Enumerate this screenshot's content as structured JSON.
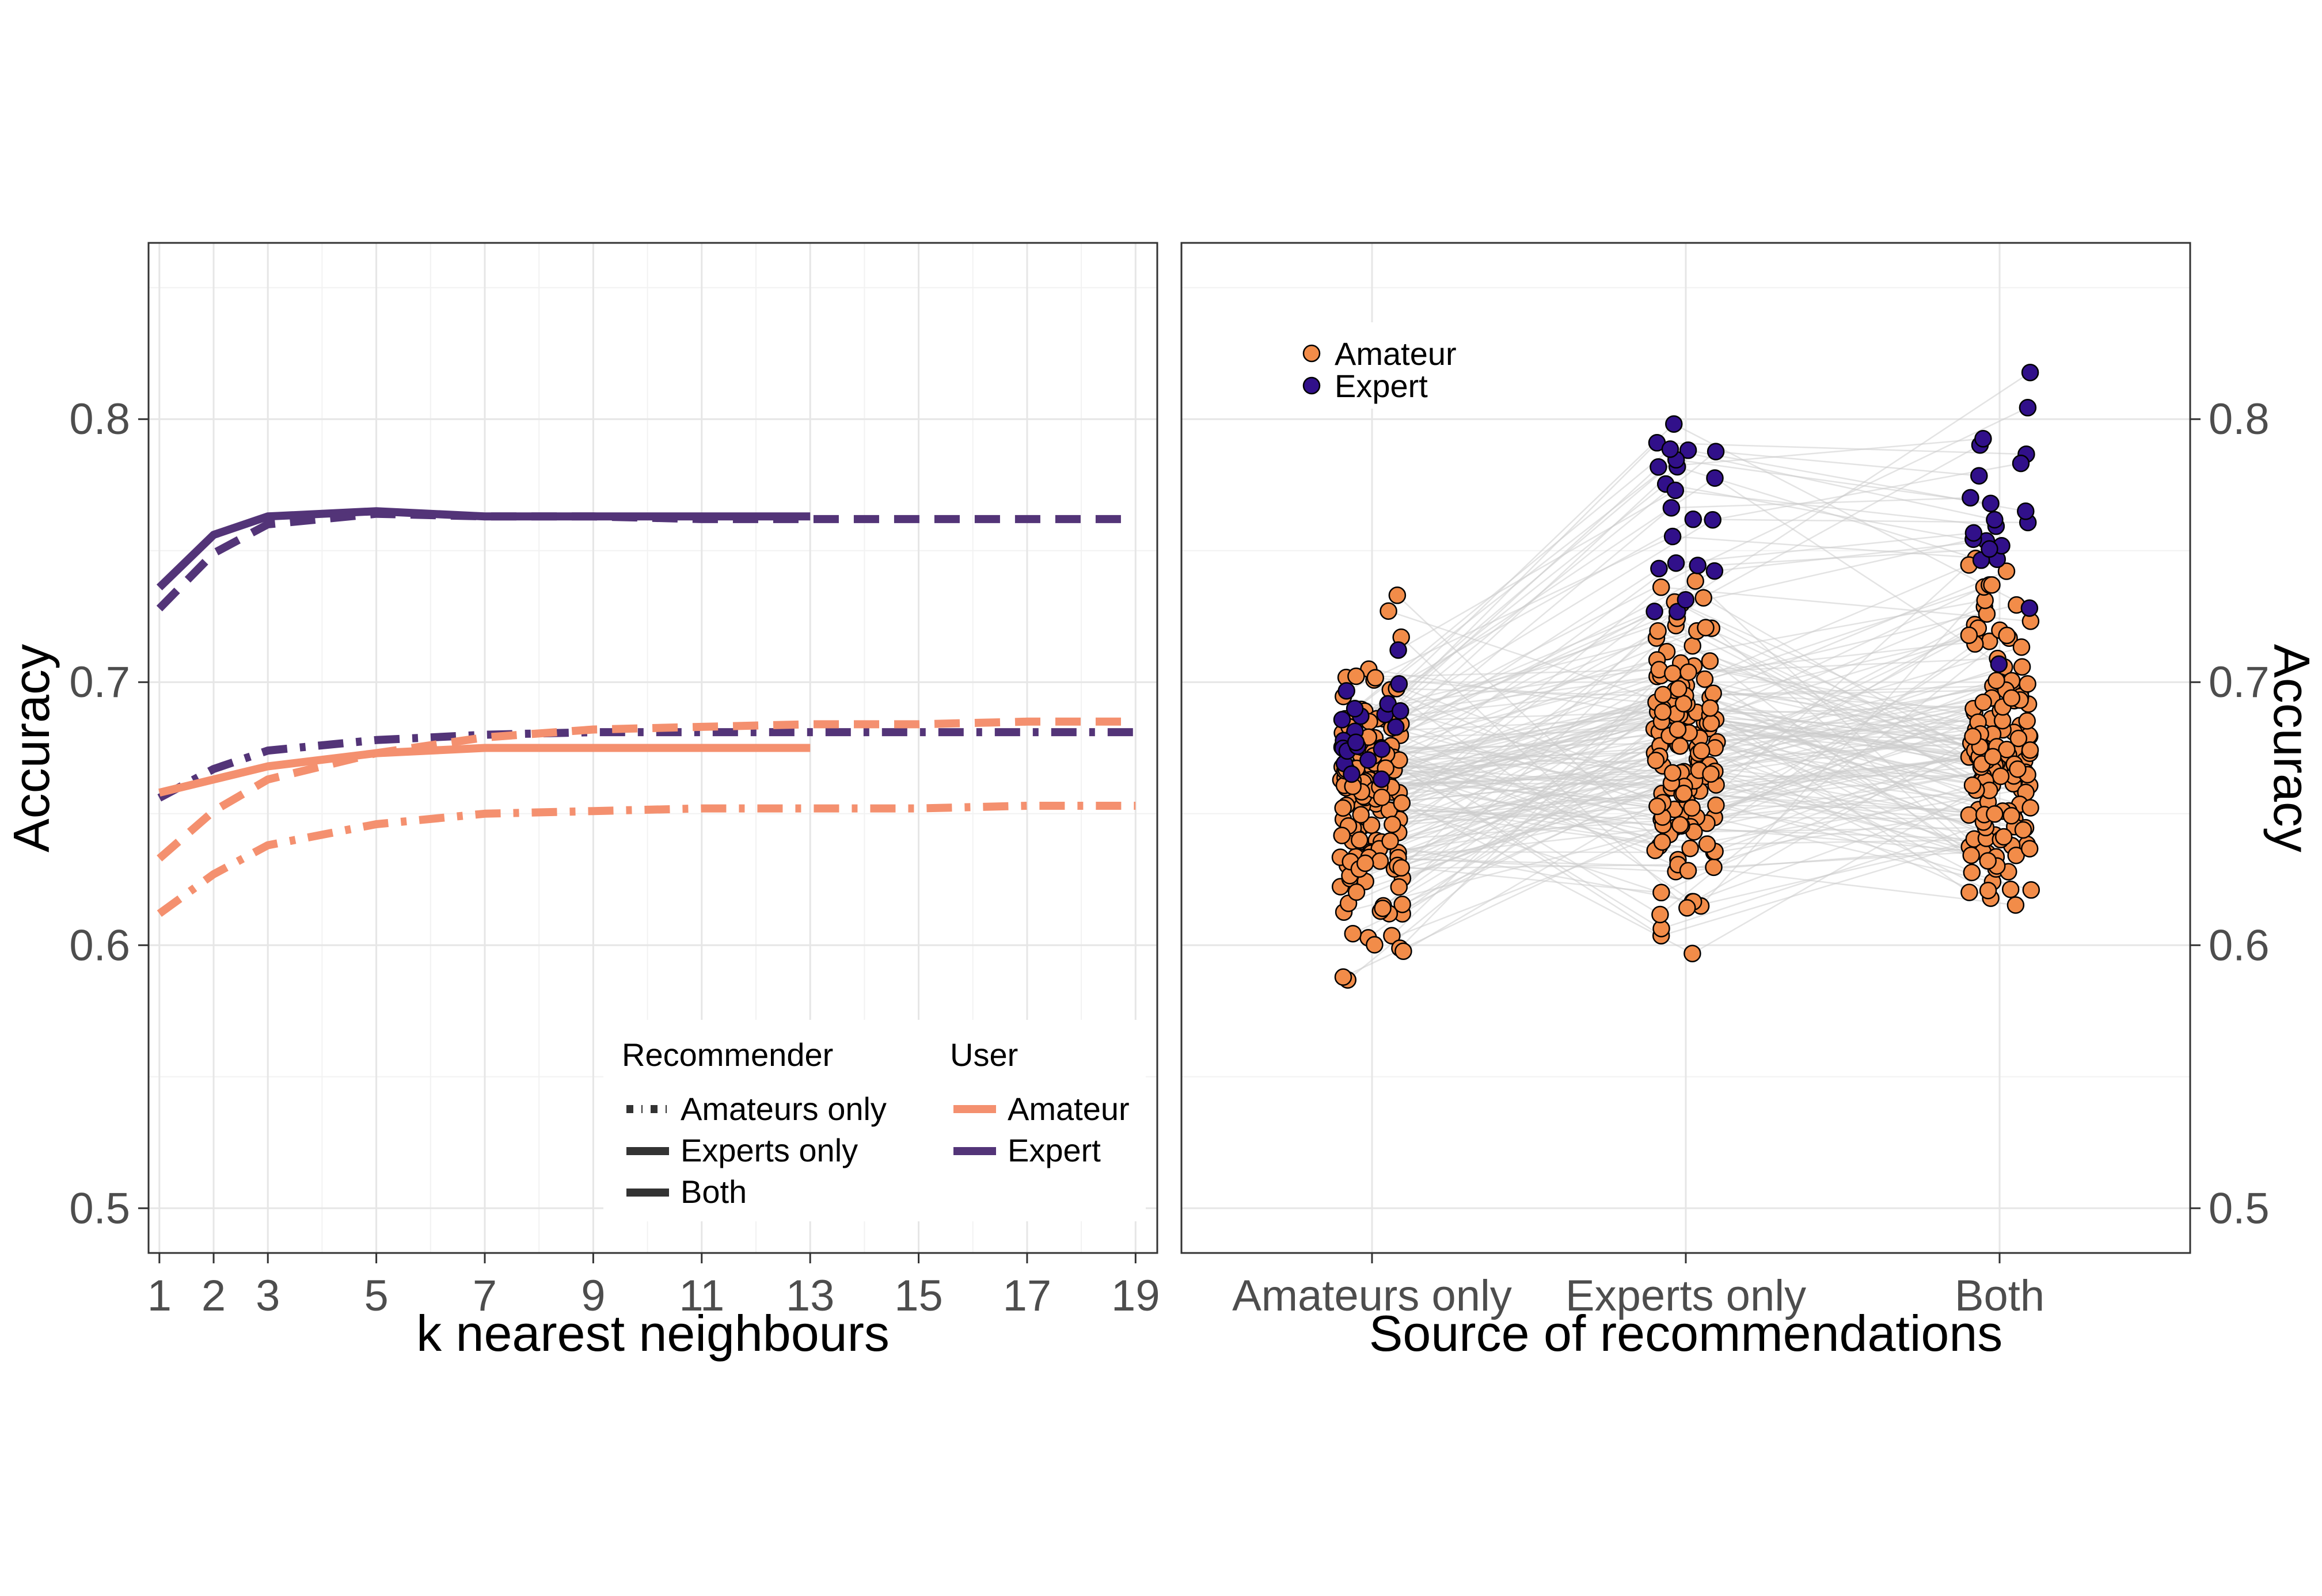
{
  "chart_data": [
    {
      "type": "line",
      "xlabel": "k nearest neighbours",
      "ylabel": "Accuracy",
      "xticks": [
        1,
        2,
        3,
        5,
        7,
        9,
        11,
        13,
        15,
        17,
        19
      ],
      "xlim": [
        0.8,
        19.4
      ],
      "ylim": [
        0.483,
        0.867
      ],
      "yticks": [
        0.5,
        0.6,
        0.7,
        0.8
      ],
      "ytick_labels": [
        "0.5",
        "0.6",
        "0.7",
        "0.8"
      ],
      "grid": true,
      "legend": {
        "placement": "bottom-right",
        "linetype_title": "Recommender",
        "linetype_entries": [
          "Amateurs only",
          "Experts only",
          "Both"
        ],
        "color_title": "User",
        "color_entries": [
          "Amateur",
          "Expert"
        ]
      },
      "colors": {
        "Amateur": "#f4906f",
        "Expert": "#533478"
      },
      "series": [
        {
          "user": "Expert",
          "recommender": "Experts only",
          "dash": "solid",
          "x": [
            1,
            2,
            3,
            5,
            7,
            9,
            11,
            13
          ],
          "y": [
            0.736,
            0.756,
            0.763,
            0.765,
            0.763,
            0.763,
            0.763,
            0.763
          ]
        },
        {
          "user": "Expert",
          "recommender": "Both",
          "dash": "dashed",
          "x": [
            1,
            2,
            3,
            5,
            7,
            9,
            11,
            13,
            15,
            17,
            19
          ],
          "y": [
            0.728,
            0.749,
            0.76,
            0.764,
            0.763,
            0.763,
            0.762,
            0.762,
            0.762,
            0.762,
            0.762
          ]
        },
        {
          "user": "Expert",
          "recommender": "Amateurs only",
          "dash": "dashdot",
          "x": [
            1,
            2,
            3,
            5,
            7,
            9,
            11,
            13,
            15,
            17,
            19
          ],
          "y": [
            0.656,
            0.667,
            0.674,
            0.678,
            0.68,
            0.681,
            0.681,
            0.681,
            0.681,
            0.681,
            0.681
          ]
        },
        {
          "user": "Amateur",
          "recommender": "Experts only",
          "dash": "solid",
          "x": [
            1,
            2,
            3,
            5,
            7,
            9,
            11,
            13
          ],
          "y": [
            0.658,
            0.663,
            0.668,
            0.673,
            0.675,
            0.675,
            0.675,
            0.675
          ]
        },
        {
          "user": "Amateur",
          "recommender": "Both",
          "dash": "dashed",
          "x": [
            1,
            2,
            3,
            5,
            7,
            9,
            11,
            13,
            15,
            17,
            19
          ],
          "y": [
            0.633,
            0.651,
            0.663,
            0.673,
            0.679,
            0.682,
            0.683,
            0.684,
            0.684,
            0.685,
            0.685
          ]
        },
        {
          "user": "Amateur",
          "recommender": "Amateurs only",
          "dash": "dashdot",
          "x": [
            1,
            2,
            3,
            5,
            7,
            9,
            11,
            13,
            15,
            17,
            19
          ],
          "y": [
            0.612,
            0.627,
            0.638,
            0.646,
            0.65,
            0.651,
            0.652,
            0.652,
            0.652,
            0.653,
            0.653
          ]
        }
      ]
    },
    {
      "type": "scatter",
      "xlabel": "Source of recommendations",
      "ylabel": "Accuracy",
      "categories": [
        "Amateurs only",
        "Experts only",
        "Both"
      ],
      "ylim": [
        0.483,
        0.867
      ],
      "yticks": [
        0.5,
        0.6,
        0.7,
        0.8
      ],
      "ytick_labels": [
        "0.5",
        "0.6",
        "0.7",
        "0.8"
      ],
      "grid": true,
      "legend": {
        "placement": "top-left",
        "entries": [
          "Amateur",
          "Expert"
        ]
      },
      "colors": {
        "Amateur": "#f28c49",
        "Expert": "#31108a",
        "link": "#cccccc"
      },
      "notes": "One point per user per source, jittered horizontally; thin grey lines link each user's three points.",
      "n_amateur": 150,
      "n_expert": 22,
      "seed": 7
    }
  ]
}
